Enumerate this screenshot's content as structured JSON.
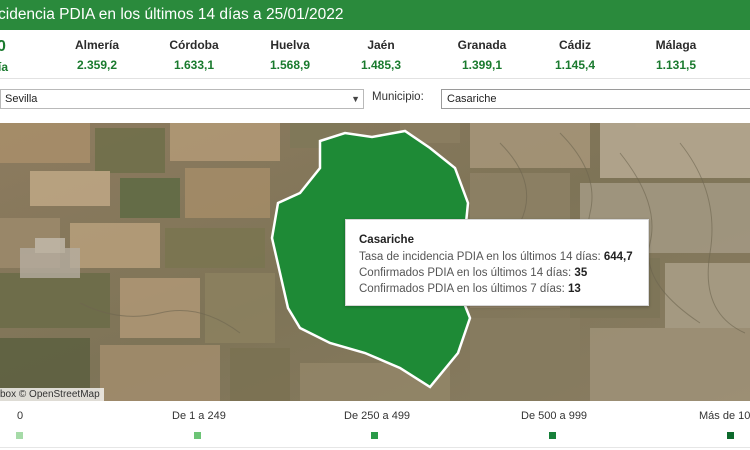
{
  "header": {
    "title": "cidencia PDIA en los últimos 14 días a 25/01/2022"
  },
  "left_fragments": {
    "top": "0",
    "bottom": "ía"
  },
  "provinces": [
    {
      "name": "Almería",
      "value": "2.359,2"
    },
    {
      "name": "Córdoba",
      "value": "1.633,1"
    },
    {
      "name": "Huelva",
      "value": "1.568,9"
    },
    {
      "name": "Jaén",
      "value": "1.485,3"
    },
    {
      "name": "Granada",
      "value": "1.399,1"
    },
    {
      "name": "Cádiz",
      "value": "1.145,4"
    },
    {
      "name": "Málaga",
      "value": "1.131,5"
    }
  ],
  "filters": {
    "province_value": "Sevilla",
    "municipio_label": "Municipio:",
    "municipio_value": "Casariche"
  },
  "map": {
    "attribution": "box © OpenStreetMap",
    "highlight_color": "#1e8a36"
  },
  "tooltip": {
    "title": "Casariche",
    "rows": [
      {
        "label": "Tasa de incidencia PDIA en los últimos 14 días:",
        "value": "644,7"
      },
      {
        "label": "Confirmados PDIA en los últimos 14 días:",
        "value": "35"
      },
      {
        "label": "Confirmados PDIA en los últimos 7 días:",
        "value": "13"
      }
    ]
  },
  "legend": [
    {
      "label": "0",
      "color": "#a6dba8"
    },
    {
      "label": "De 1 a 249",
      "color": "#6cc476"
    },
    {
      "label": "De 250 a 499",
      "color": "#2a9a48"
    },
    {
      "label": "De 500 a 999",
      "color": "#17803a"
    },
    {
      "label": "Más de 10",
      "color": "#0d6a2c"
    }
  ]
}
